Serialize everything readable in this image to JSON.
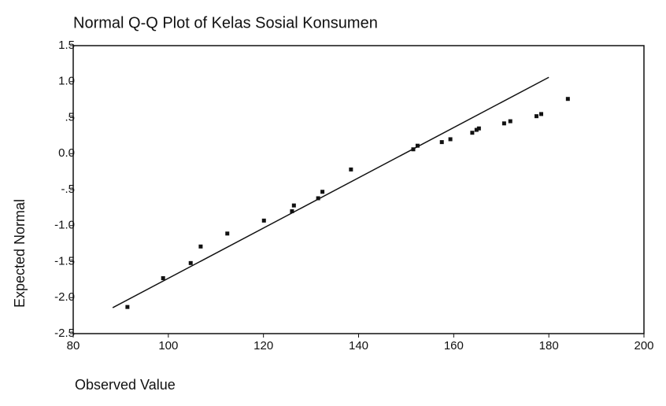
{
  "chart_data": {
    "type": "scatter",
    "title": "Normal Q-Q Plot of Kelas Sosial Konsumen",
    "x_label": "Observed Value",
    "y_label": "Expected Normal",
    "x": [
      91.4,
      98.9,
      104.7,
      106.8,
      112.4,
      120.1,
      126.0,
      126.4,
      131.5,
      132.4,
      138.4,
      151.5,
      152.4,
      157.5,
      159.3,
      163.9,
      164.8,
      165.3,
      170.6,
      171.9,
      177.4,
      178.4,
      184.0
    ],
    "values": [
      -2.13,
      -1.73,
      -1.52,
      -1.29,
      -1.11,
      -0.93,
      -0.8,
      -0.72,
      -0.62,
      -0.53,
      -0.22,
      0.06,
      0.11,
      0.16,
      0.2,
      0.29,
      0.33,
      0.35,
      0.42,
      0.45,
      0.52,
      0.55,
      0.76
    ],
    "color": "#111111",
    "reference_line": {
      "x": [
        88.3,
        180.0
      ],
      "y": [
        -2.14,
        1.06
      ],
      "color": "#111111"
    },
    "xlim": [
      80,
      200
    ],
    "xticks": [
      80,
      100,
      120,
      140,
      160,
      180,
      200
    ],
    "ylim": [
      -2.5,
      1.5
    ],
    "yticks": [
      -2.5,
      {
        "value": -2.0,
        "label": "-2.0"
      },
      -1.5,
      {
        "value": -1.0,
        "label": "-1.0"
      },
      {
        "value": -0.5,
        "label": "-.5"
      },
      {
        "value": 0.0,
        "label": "0.0"
      },
      {
        "value": 0.5,
        "label": ".5"
      },
      {
        "value": 1.0,
        "label": "1.0"
      },
      1.5
    ],
    "grid": false
  }
}
